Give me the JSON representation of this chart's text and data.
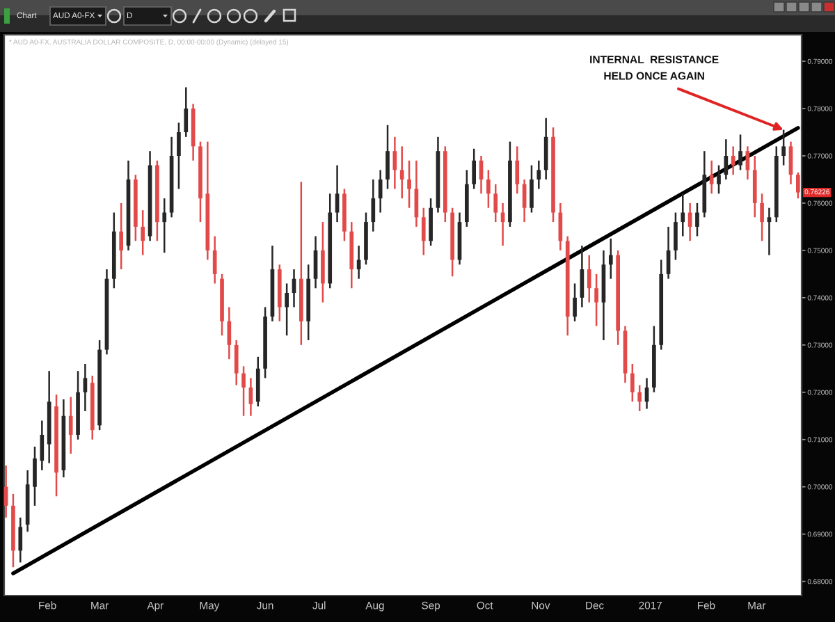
{
  "chart_data": {
    "type": "candlestick",
    "subtitle": "* AUD A0-FX, AUSTRALIA DOLLAR COMPOSITE, D, 00:00-00:00 (Dynamic) (delayed 15)",
    "x": [
      "2016-01-09",
      "2016-01-13",
      "2016-01-17",
      "2016-01-21",
      "2016-01-25",
      "2016-01-29",
      "2016-02-02",
      "2016-02-06",
      "2016-02-10",
      "2016-02-14",
      "2016-02-18",
      "2016-02-22",
      "2016-02-26",
      "2016-03-01",
      "2016-03-05",
      "2016-03-09",
      "2016-03-13",
      "2016-03-17",
      "2016-03-21",
      "2016-03-25",
      "2016-03-29",
      "2016-04-02",
      "2016-04-06",
      "2016-04-10",
      "2016-04-14",
      "2016-04-18",
      "2016-04-22",
      "2016-04-26",
      "2016-04-30",
      "2016-05-04",
      "2016-05-08",
      "2016-05-12",
      "2016-05-16",
      "2016-05-20",
      "2016-05-24",
      "2016-05-28",
      "2016-06-01",
      "2016-06-05",
      "2016-06-09",
      "2016-06-13",
      "2016-06-17",
      "2016-06-21",
      "2016-06-25",
      "2016-06-29",
      "2016-07-03",
      "2016-07-07",
      "2016-07-11",
      "2016-07-15",
      "2016-07-19",
      "2016-07-23",
      "2016-07-27",
      "2016-07-31",
      "2016-08-04",
      "2016-08-08",
      "2016-08-12",
      "2016-08-16",
      "2016-08-20",
      "2016-08-24",
      "2016-08-28",
      "2016-09-01",
      "2016-09-05",
      "2016-09-09",
      "2016-09-13",
      "2016-09-17",
      "2016-09-21",
      "2016-09-25",
      "2016-09-29",
      "2016-10-03",
      "2016-10-07",
      "2016-10-11",
      "2016-10-15",
      "2016-10-19",
      "2016-10-23",
      "2016-10-27",
      "2016-10-31",
      "2016-11-04",
      "2016-11-08",
      "2016-11-12",
      "2016-11-16",
      "2016-11-20",
      "2016-11-24",
      "2016-11-28",
      "2016-12-02",
      "2016-12-06",
      "2016-12-10",
      "2016-12-14",
      "2016-12-18",
      "2016-12-22",
      "2016-12-26",
      "2016-12-30",
      "2017-01-03",
      "2017-01-07",
      "2017-01-11",
      "2017-01-15",
      "2017-01-19",
      "2017-01-23",
      "2017-01-27",
      "2017-01-31",
      "2017-02-04",
      "2017-02-08",
      "2017-02-12",
      "2017-02-16",
      "2017-02-20",
      "2017-02-24",
      "2017-02-28",
      "2017-03-04",
      "2017-03-08",
      "2017-03-12",
      "2017-03-16",
      "2017-03-20",
      "2017-03-24"
    ],
    "ohlc": [
      [
        0.7,
        0.7045,
        0.6935,
        0.696
      ],
      [
        0.696,
        0.6985,
        0.683,
        0.6865
      ],
      [
        0.6865,
        0.6935,
        0.684,
        0.6915
      ],
      [
        0.692,
        0.7035,
        0.6905,
        0.7005
      ],
      [
        0.7,
        0.7085,
        0.696,
        0.706
      ],
      [
        0.7055,
        0.714,
        0.7035,
        0.711
      ],
      [
        0.709,
        0.7245,
        0.705,
        0.718
      ],
      [
        0.717,
        0.7195,
        0.698,
        0.703
      ],
      [
        0.7035,
        0.7185,
        0.702,
        0.715
      ],
      [
        0.715,
        0.719,
        0.707,
        0.711
      ],
      [
        0.711,
        0.7245,
        0.71,
        0.72
      ],
      [
        0.72,
        0.726,
        0.716,
        0.723
      ],
      [
        0.722,
        0.7235,
        0.71,
        0.712
      ],
      [
        0.713,
        0.731,
        0.712,
        0.729
      ],
      [
        0.729,
        0.746,
        0.728,
        0.744
      ],
      [
        0.744,
        0.758,
        0.742,
        0.754
      ],
      [
        0.754,
        0.76,
        0.746,
        0.75
      ],
      [
        0.751,
        0.769,
        0.75,
        0.765
      ],
      [
        0.765,
        0.766,
        0.752,
        0.755
      ],
      [
        0.755,
        0.7585,
        0.749,
        0.752
      ],
      [
        0.753,
        0.771,
        0.752,
        0.768
      ],
      [
        0.768,
        0.769,
        0.752,
        0.756
      ],
      [
        0.756,
        0.761,
        0.7495,
        0.758
      ],
      [
        0.758,
        0.774,
        0.757,
        0.77
      ],
      [
        0.77,
        0.777,
        0.763,
        0.775
      ],
      [
        0.775,
        0.7845,
        0.774,
        0.78
      ],
      [
        0.78,
        0.781,
        0.769,
        0.772
      ],
      [
        0.772,
        0.773,
        0.756,
        0.761
      ],
      [
        0.762,
        0.773,
        0.748,
        0.75
      ],
      [
        0.75,
        0.753,
        0.743,
        0.745
      ],
      [
        0.744,
        0.745,
        0.732,
        0.735
      ],
      [
        0.735,
        0.738,
        0.727,
        0.73
      ],
      [
        0.73,
        0.731,
        0.7215,
        0.724
      ],
      [
        0.724,
        0.7255,
        0.715,
        0.721
      ],
      [
        0.721,
        0.723,
        0.715,
        0.7175
      ],
      [
        0.718,
        0.7275,
        0.717,
        0.725
      ],
      [
        0.725,
        0.738,
        0.723,
        0.736
      ],
      [
        0.736,
        0.751,
        0.735,
        0.746
      ],
      [
        0.746,
        0.747,
        0.735,
        0.738
      ],
      [
        0.738,
        0.743,
        0.732,
        0.741
      ],
      [
        0.741,
        0.746,
        0.738,
        0.744
      ],
      [
        0.744,
        0.7645,
        0.73,
        0.735
      ],
      [
        0.735,
        0.747,
        0.731,
        0.744
      ],
      [
        0.744,
        0.753,
        0.742,
        0.75
      ],
      [
        0.75,
        0.756,
        0.739,
        0.743
      ],
      [
        0.743,
        0.762,
        0.742,
        0.758
      ],
      [
        0.758,
        0.768,
        0.756,
        0.762
      ],
      [
        0.762,
        0.763,
        0.752,
        0.754
      ],
      [
        0.754,
        0.756,
        0.742,
        0.746
      ],
      [
        0.746,
        0.751,
        0.744,
        0.748
      ],
      [
        0.748,
        0.758,
        0.747,
        0.756
      ],
      [
        0.756,
        0.765,
        0.754,
        0.761
      ],
      [
        0.761,
        0.767,
        0.758,
        0.765
      ],
      [
        0.765,
        0.7765,
        0.763,
        0.771
      ],
      [
        0.771,
        0.774,
        0.763,
        0.767
      ],
      [
        0.767,
        0.772,
        0.761,
        0.765
      ],
      [
        0.765,
        0.769,
        0.759,
        0.763
      ],
      [
        0.763,
        0.769,
        0.755,
        0.757
      ],
      [
        0.757,
        0.759,
        0.749,
        0.752
      ],
      [
        0.752,
        0.761,
        0.751,
        0.759
      ],
      [
        0.759,
        0.774,
        0.758,
        0.771
      ],
      [
        0.771,
        0.772,
        0.756,
        0.758
      ],
      [
        0.758,
        0.759,
        0.7445,
        0.748
      ],
      [
        0.748,
        0.758,
        0.747,
        0.756
      ],
      [
        0.756,
        0.767,
        0.755,
        0.764
      ],
      [
        0.764,
        0.7715,
        0.763,
        0.769
      ],
      [
        0.769,
        0.77,
        0.762,
        0.765
      ],
      [
        0.765,
        0.767,
        0.759,
        0.762
      ],
      [
        0.762,
        0.764,
        0.756,
        0.758
      ],
      [
        0.758,
        0.76,
        0.751,
        0.756
      ],
      [
        0.756,
        0.773,
        0.755,
        0.769
      ],
      [
        0.769,
        0.772,
        0.762,
        0.764
      ],
      [
        0.764,
        0.765,
        0.756,
        0.759
      ],
      [
        0.759,
        0.768,
        0.758,
        0.765
      ],
      [
        0.765,
        0.769,
        0.763,
        0.767
      ],
      [
        0.767,
        0.778,
        0.765,
        0.774
      ],
      [
        0.774,
        0.776,
        0.756,
        0.758
      ],
      [
        0.758,
        0.76,
        0.75,
        0.752
      ],
      [
        0.752,
        0.753,
        0.732,
        0.736
      ],
      [
        0.736,
        0.743,
        0.735,
        0.74
      ],
      [
        0.74,
        0.751,
        0.738,
        0.746
      ],
      [
        0.746,
        0.749,
        0.739,
        0.742
      ],
      [
        0.742,
        0.745,
        0.734,
        0.739
      ],
      [
        0.739,
        0.75,
        0.731,
        0.747
      ],
      [
        0.747,
        0.7525,
        0.744,
        0.749
      ],
      [
        0.749,
        0.75,
        0.73,
        0.733
      ],
      [
        0.733,
        0.734,
        0.722,
        0.724
      ],
      [
        0.724,
        0.726,
        0.718,
        0.72
      ],
      [
        0.72,
        0.7215,
        0.716,
        0.718
      ],
      [
        0.718,
        0.723,
        0.7165,
        0.721
      ],
      [
        0.721,
        0.734,
        0.72,
        0.73
      ],
      [
        0.73,
        0.748,
        0.729,
        0.745
      ],
      [
        0.745,
        0.755,
        0.744,
        0.75
      ],
      [
        0.75,
        0.758,
        0.748,
        0.756
      ],
      [
        0.756,
        0.762,
        0.753,
        0.758
      ],
      [
        0.758,
        0.76,
        0.752,
        0.755
      ],
      [
        0.755,
        0.76,
        0.753,
        0.758
      ],
      [
        0.758,
        0.771,
        0.757,
        0.766
      ],
      [
        0.766,
        0.769,
        0.762,
        0.764
      ],
      [
        0.764,
        0.768,
        0.762,
        0.766
      ],
      [
        0.766,
        0.7735,
        0.765,
        0.77
      ],
      [
        0.77,
        0.772,
        0.766,
        0.768
      ],
      [
        0.768,
        0.7745,
        0.767,
        0.771
      ],
      [
        0.771,
        0.772,
        0.765,
        0.767
      ],
      [
        0.767,
        0.77,
        0.757,
        0.76
      ],
      [
        0.76,
        0.762,
        0.752,
        0.756
      ],
      [
        0.756,
        0.759,
        0.749,
        0.757
      ],
      [
        0.757,
        0.772,
        0.756,
        0.77
      ],
      [
        0.77,
        0.7755,
        0.768,
        0.772
      ],
      [
        0.772,
        0.773,
        0.764,
        0.766
      ],
      [
        0.766,
        0.7665,
        0.761,
        0.76226
      ]
    ],
    "colors": [
      "#e24a4a",
      "#e24a4a",
      "#262626",
      "#262626",
      "#262626",
      "#262626",
      "#262626",
      "#e24a4a",
      "#262626",
      "#e24a4a",
      "#262626",
      "#262626",
      "#e24a4a",
      "#262626",
      "#262626",
      "#262626",
      "#e24a4a",
      "#262626",
      "#e24a4a",
      "#e24a4a",
      "#262626",
      "#e24a4a",
      "#262626",
      "#262626",
      "#262626",
      "#262626",
      "#e24a4a",
      "#e24a4a",
      "#e24a4a",
      "#e24a4a",
      "#e24a4a",
      "#e24a4a",
      "#e24a4a",
      "#e24a4a",
      "#e24a4a",
      "#262626",
      "#262626",
      "#262626",
      "#e24a4a",
      "#262626",
      "#262626",
      "#e24a4a",
      "#262626",
      "#262626",
      "#e24a4a",
      "#262626",
      "#262626",
      "#e24a4a",
      "#e24a4a",
      "#262626",
      "#262626",
      "#262626",
      "#262626",
      "#262626",
      "#e24a4a",
      "#e24a4a",
      "#e24a4a",
      "#e24a4a",
      "#e24a4a",
      "#262626",
      "#262626",
      "#e24a4a",
      "#e24a4a",
      "#262626",
      "#262626",
      "#262626",
      "#e24a4a",
      "#e24a4a",
      "#e24a4a",
      "#e24a4a",
      "#262626",
      "#e24a4a",
      "#e24a4a",
      "#262626",
      "#262626",
      "#262626",
      "#e24a4a",
      "#e24a4a",
      "#e24a4a",
      "#262626",
      "#262626",
      "#e24a4a",
      "#e24a4a",
      "#262626",
      "#262626",
      "#e24a4a",
      "#e24a4a",
      "#e24a4a",
      "#e24a4a",
      "#262626",
      "#262626",
      "#262626",
      "#262626",
      "#262626",
      "#262626",
      "#e24a4a",
      "#262626",
      "#262626",
      "#e24a4a",
      "#262626",
      "#262626",
      "#e24a4a",
      "#262626",
      "#e24a4a",
      "#e24a4a",
      "#e24a4a",
      "#262626",
      "#262626",
      "#262626",
      "#e24a4a",
      "#e24a4a"
    ],
    "series": [
      {
        "type": "line",
        "x": [
          "2016-01-13",
          "2017-03-24"
        ],
        "values": [
          0.6817,
          0.7759
        ],
        "color": "#000000"
      }
    ],
    "xlim": [
      "2016-01-08",
      "2017-03-26"
    ],
    "xticks": [
      {
        "value": "2016-02-01",
        "label": "Feb"
      },
      {
        "value": "2016-03-01",
        "label": "Mar"
      },
      {
        "value": "2016-04-01",
        "label": "Apr"
      },
      {
        "value": "2016-05-01",
        "label": "May"
      },
      {
        "value": "2016-06-01",
        "label": "Jun"
      },
      {
        "value": "2016-07-01",
        "label": "Jul"
      },
      {
        "value": "2016-08-01",
        "label": "Aug"
      },
      {
        "value": "2016-09-01",
        "label": "Sep"
      },
      {
        "value": "2016-10-01",
        "label": "Oct"
      },
      {
        "value": "2016-11-01",
        "label": "Nov"
      },
      {
        "value": "2016-12-01",
        "label": "Dec"
      },
      {
        "value": "2017-01-01",
        "label": "2017"
      },
      {
        "value": "2017-02-01",
        "label": "Feb"
      },
      {
        "value": "2017-03-01",
        "label": "Mar"
      }
    ],
    "ylim": [
      0.677,
      0.7956
    ],
    "yticks": [
      {
        "value": 0.68,
        "label": "0.68000"
      },
      {
        "value": 0.69,
        "label": "0.69000"
      },
      {
        "value": 0.7,
        "label": "0.70000"
      },
      {
        "value": 0.71,
        "label": "0.71000"
      },
      {
        "value": 0.72,
        "label": "0.72000"
      },
      {
        "value": 0.73,
        "label": "0.73000"
      },
      {
        "value": 0.74,
        "label": "0.74000"
      },
      {
        "value": 0.75,
        "label": "0.75000"
      },
      {
        "value": 0.76,
        "label": "0.76000"
      },
      {
        "value": 0.77,
        "label": "0.77000"
      },
      {
        "value": 0.78,
        "label": "0.78000"
      },
      {
        "value": 0.79,
        "label": "0.79000"
      }
    ],
    "annotations": [
      "Chart",
      "AUD A0-FX",
      "D",
      {
        "text": "INTERNAL  RESISTANCE\nHELD ONCE AGAIN",
        "x": "2017-03-16",
        "y": 0.7755
      },
      {
        "text": "0.76226",
        "y": 0.76226
      }
    ]
  }
}
